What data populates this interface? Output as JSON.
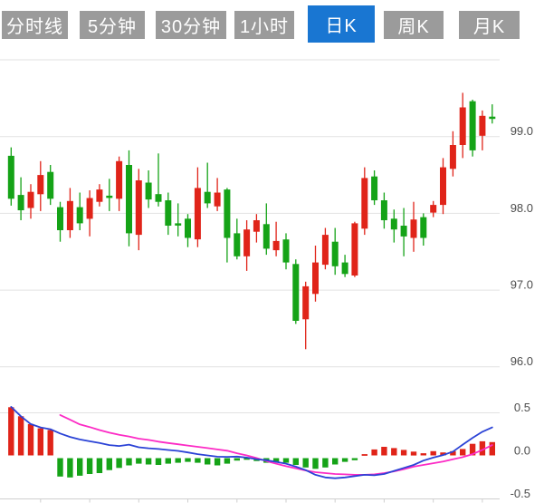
{
  "tabs": [
    {
      "label": "分时线",
      "active": false
    },
    {
      "label": "5分钟",
      "active": false
    },
    {
      "label": "30分钟",
      "active": false
    },
    {
      "label": "1小时",
      "active": false
    },
    {
      "label": "日K",
      "active": true
    },
    {
      "label": "周K",
      "active": false
    },
    {
      "label": "月K",
      "active": false
    }
  ],
  "colors": {
    "up": "#e02419",
    "down": "#15a317",
    "dif_line": "#2b43d6",
    "dea_line": "#fc2bc5",
    "tab_bg": "#9b9b9b",
    "tab_active_bg": "#1976d2",
    "grid": "#e2e2e2",
    "axis_line": "#cfcfcf",
    "axis_text": "#4d4d4d"
  },
  "chart_data": [
    {
      "type": "candlestick",
      "title": "",
      "xlabel": "",
      "ylabel": "price",
      "grid": true,
      "legend_position": "none",
      "ylim": [
        95.8,
        100.1
      ],
      "y_grid_values": [
        100.0,
        99.0,
        98.0,
        97.0,
        96.0
      ],
      "y_tick_labels": [
        "99.0",
        "98.0",
        "97.0",
        "96.0"
      ],
      "y_tick_values": [
        99.0,
        98.0,
        97.0,
        96.0
      ],
      "candles_ohlc": [
        [
          98.75,
          98.86,
          98.1,
          98.19
        ],
        [
          98.24,
          98.47,
          97.91,
          98.04
        ],
        [
          98.07,
          98.38,
          97.93,
          98.28
        ],
        [
          98.25,
          98.68,
          98.03,
          98.5
        ],
        [
          98.54,
          98.63,
          98.11,
          98.19
        ],
        [
          98.08,
          98.15,
          97.63,
          97.78
        ],
        [
          97.78,
          98.33,
          97.68,
          98.16
        ],
        [
          98.08,
          98.27,
          97.78,
          97.87
        ],
        [
          97.93,
          98.3,
          97.7,
          98.2
        ],
        [
          98.15,
          98.38,
          98.09,
          98.31
        ],
        [
          98.23,
          98.45,
          98.03,
          98.2
        ],
        [
          98.19,
          98.74,
          98.03,
          98.68
        ],
        [
          98.63,
          98.82,
          97.57,
          97.74
        ],
        [
          97.72,
          98.58,
          97.52,
          98.43
        ],
        [
          98.4,
          98.56,
          98.07,
          98.18
        ],
        [
          98.25,
          98.78,
          98.09,
          98.15
        ],
        [
          98.17,
          98.27,
          97.72,
          97.84
        ],
        [
          97.87,
          98.13,
          97.7,
          97.84
        ],
        [
          97.93,
          97.99,
          97.56,
          97.68
        ],
        [
          97.66,
          98.6,
          97.56,
          98.33
        ],
        [
          98.28,
          98.66,
          98.07,
          98.13
        ],
        [
          98.09,
          98.46,
          98.03,
          98.27
        ],
        [
          98.31,
          98.33,
          97.36,
          97.68
        ],
        [
          97.74,
          97.93,
          97.4,
          97.44
        ],
        [
          97.44,
          97.91,
          97.25,
          97.79
        ],
        [
          97.76,
          97.99,
          97.62,
          97.91
        ],
        [
          97.86,
          98.13,
          97.46,
          97.54
        ],
        [
          97.52,
          97.89,
          97.44,
          97.64
        ],
        [
          97.66,
          97.74,
          97.27,
          97.36
        ],
        [
          97.34,
          97.4,
          96.56,
          96.6
        ],
        [
          96.62,
          97.11,
          96.23,
          97.05
        ],
        [
          96.95,
          97.58,
          96.85,
          97.36
        ],
        [
          97.33,
          97.81,
          97.27,
          97.72
        ],
        [
          97.63,
          97.81,
          97.2,
          97.31
        ],
        [
          97.36,
          97.46,
          97.17,
          97.21
        ],
        [
          97.19,
          97.89,
          97.17,
          97.87
        ],
        [
          97.8,
          98.6,
          97.72,
          98.46
        ],
        [
          98.48,
          98.56,
          98.11,
          98.17
        ],
        [
          98.17,
          98.27,
          97.8,
          97.91
        ],
        [
          97.93,
          98.05,
          97.62,
          97.79
        ],
        [
          97.84,
          98.07,
          97.44,
          97.7
        ],
        [
          97.68,
          98.15,
          97.5,
          97.92
        ],
        [
          97.95,
          98.0,
          97.58,
          97.68
        ],
        [
          98.01,
          98.16,
          97.95,
          98.11
        ],
        [
          98.11,
          98.72,
          97.99,
          98.6
        ],
        [
          98.58,
          99.07,
          98.48,
          98.89
        ],
        [
          98.89,
          99.57,
          98.72,
          99.38
        ],
        [
          99.46,
          99.48,
          98.74,
          98.82
        ],
        [
          99.01,
          99.34,
          98.82,
          99.27
        ],
        [
          99.26,
          99.42,
          99.17,
          99.23
        ]
      ]
    },
    {
      "type": "bar",
      "name": "macd-panel",
      "grid": true,
      "y_tick_labels": [
        "0.5",
        "0.0",
        "-0.5"
      ],
      "y_tick_values": [
        0.5,
        0.0,
        -0.5
      ],
      "ylim": [
        -0.55,
        0.6
      ],
      "histogram": [
        0.565,
        0.46,
        0.37,
        0.32,
        0.3,
        -0.24,
        -0.25,
        -0.23,
        -0.21,
        -0.2,
        -0.165,
        -0.14,
        -0.11,
        -0.09,
        -0.1,
        -0.105,
        -0.09,
        -0.08,
        -0.07,
        -0.08,
        -0.1,
        -0.11,
        -0.09,
        -0.055,
        -0.045,
        -0.06,
        -0.08,
        -0.07,
        -0.08,
        -0.105,
        -0.135,
        -0.15,
        -0.135,
        -0.1,
        -0.07,
        -0.05,
        0.02,
        0.075,
        0.105,
        0.09,
        0.07,
        0.05,
        0.03,
        0.055,
        0.04,
        0.055,
        0.08,
        0.14,
        0.17,
        0.16
      ],
      "series": [
        {
          "name": "DIF",
          "values": [
            0.57,
            0.46,
            0.37,
            0.33,
            0.31,
            0.26,
            0.22,
            0.19,
            0.17,
            0.15,
            0.125,
            0.115,
            0.13,
            0.1,
            0.088,
            0.08,
            0.068,
            0.058,
            0.04,
            0.02,
            0.005,
            -0.01,
            -0.012,
            -0.008,
            -0.02,
            -0.038,
            -0.05,
            -0.07,
            -0.09,
            -0.125,
            -0.165,
            -0.22,
            -0.25,
            -0.26,
            -0.25,
            -0.235,
            -0.22,
            -0.225,
            -0.21,
            -0.175,
            -0.14,
            -0.105,
            -0.055,
            -0.02,
            0.01,
            0.05,
            0.13,
            0.21,
            0.28,
            0.33
          ]
        },
        {
          "name": "DEA",
          "values": [
            null,
            null,
            null,
            null,
            null,
            0.475,
            0.42,
            0.365,
            0.335,
            0.3,
            0.27,
            0.245,
            0.225,
            0.2,
            0.185,
            0.165,
            0.15,
            0.135,
            0.12,
            0.105,
            0.09,
            0.075,
            0.06,
            0.03,
            0.005,
            -0.025,
            -0.06,
            -0.09,
            -0.12,
            -0.145,
            -0.17,
            -0.19,
            -0.2,
            -0.21,
            -0.215,
            -0.22,
            -0.22,
            -0.215,
            -0.2,
            -0.18,
            -0.155,
            -0.125,
            -0.105,
            -0.085,
            -0.065,
            -0.04,
            -0.015,
            0.02,
            0.07,
            0.125
          ]
        }
      ]
    }
  ]
}
